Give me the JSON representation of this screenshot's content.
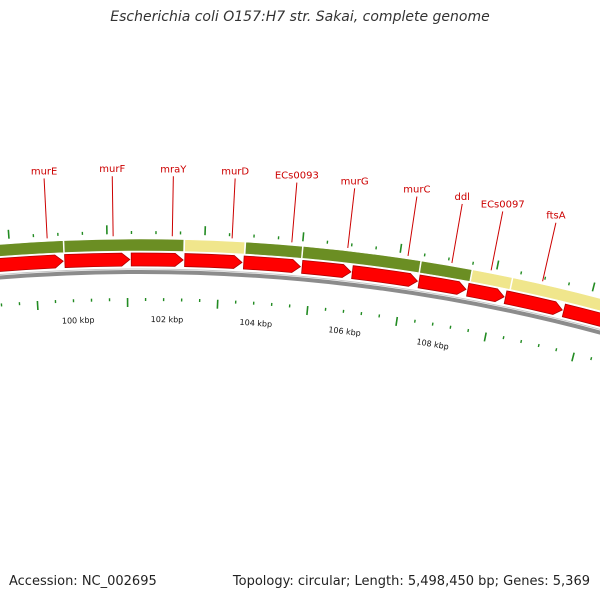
{
  "header": {
    "title": "Escherichia coli O157:H7 str. Sakai, complete genome"
  },
  "footer": {
    "accession": "Accession: NC_002695",
    "stats": "Topology: circular; Length: 5,498,450 bp; Genes: 5,369"
  },
  "colors": {
    "cds": "#ff0000",
    "cds_outline": "#b00000",
    "cog_green": "#6b8e23",
    "cog_yellow": "#f0e68c",
    "backbone": "#8c8c8c",
    "tick": "#228b22",
    "label": "#cc0000"
  },
  "gene_labels": [
    "murE",
    "murF",
    "mraY",
    "murD",
    "ECs0093",
    "murG",
    "murC",
    "ddl",
    "ECs0097",
    "ftsA"
  ],
  "scale_labels": [
    "100 kbp",
    "102 kbp",
    "104 kbp",
    "106 kbp",
    "108 kbp"
  ]
}
